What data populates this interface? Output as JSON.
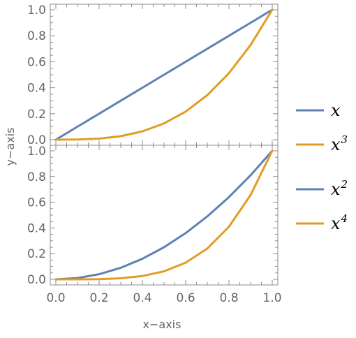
{
  "chart_data": [
    {
      "type": "line",
      "panel": "top",
      "xlim": [
        0,
        1
      ],
      "ylim": [
        0,
        1
      ],
      "x_ticks": [
        "0.0",
        "0.2",
        "0.4",
        "0.6",
        "0.8",
        "1.0"
      ],
      "y_ticks": [
        "0.0",
        "0.2",
        "0.4",
        "0.6",
        "0.8",
        "1.0"
      ],
      "series": [
        {
          "name": "x",
          "color": "#5f81b5",
          "x": [
            0,
            0.1,
            0.2,
            0.3,
            0.4,
            0.5,
            0.6,
            0.7,
            0.8,
            0.9,
            1.0
          ],
          "y": [
            0,
            0.1,
            0.2,
            0.3,
            0.4,
            0.5,
            0.6,
            0.7,
            0.8,
            0.9,
            1.0
          ]
        },
        {
          "name": "x3",
          "color": "#e19c24",
          "x": [
            0,
            0.1,
            0.2,
            0.3,
            0.4,
            0.5,
            0.6,
            0.7,
            0.8,
            0.9,
            1.0
          ],
          "y": [
            0,
            0.001,
            0.008,
            0.027,
            0.064,
            0.125,
            0.216,
            0.343,
            0.512,
            0.729,
            1.0
          ]
        }
      ]
    },
    {
      "type": "line",
      "panel": "bottom",
      "xlim": [
        0,
        1
      ],
      "ylim": [
        0,
        1
      ],
      "x_ticks": [
        "0.0",
        "0.2",
        "0.4",
        "0.6",
        "0.8",
        "1.0"
      ],
      "y_ticks": [
        "0.0",
        "0.2",
        "0.4",
        "0.6",
        "0.8",
        "1.0"
      ],
      "series": [
        {
          "name": "x2",
          "color": "#5f81b5",
          "x": [
            0,
            0.1,
            0.2,
            0.3,
            0.4,
            0.5,
            0.6,
            0.7,
            0.8,
            0.9,
            1.0
          ],
          "y": [
            0,
            0.01,
            0.04,
            0.09,
            0.16,
            0.25,
            0.36,
            0.49,
            0.64,
            0.81,
            1.0
          ]
        },
        {
          "name": "x4",
          "color": "#e19c24",
          "x": [
            0,
            0.1,
            0.2,
            0.3,
            0.4,
            0.5,
            0.6,
            0.7,
            0.8,
            0.9,
            1.0
          ],
          "y": [
            0,
            0.0001,
            0.0016,
            0.0081,
            0.0256,
            0.0625,
            0.1296,
            0.2401,
            0.4096,
            0.6561,
            1.0
          ]
        }
      ]
    }
  ],
  "axes": {
    "xlabel": "x−axis",
    "ylabel": "y−axis"
  },
  "legend": [
    {
      "base": "x",
      "sup": "",
      "color": "#5f81b5"
    },
    {
      "base": "x",
      "sup": "3",
      "color": "#e19c24"
    },
    {
      "base": "x",
      "sup": "2",
      "color": "#5f81b5"
    },
    {
      "base": "x",
      "sup": "4",
      "color": "#e19c24"
    }
  ]
}
